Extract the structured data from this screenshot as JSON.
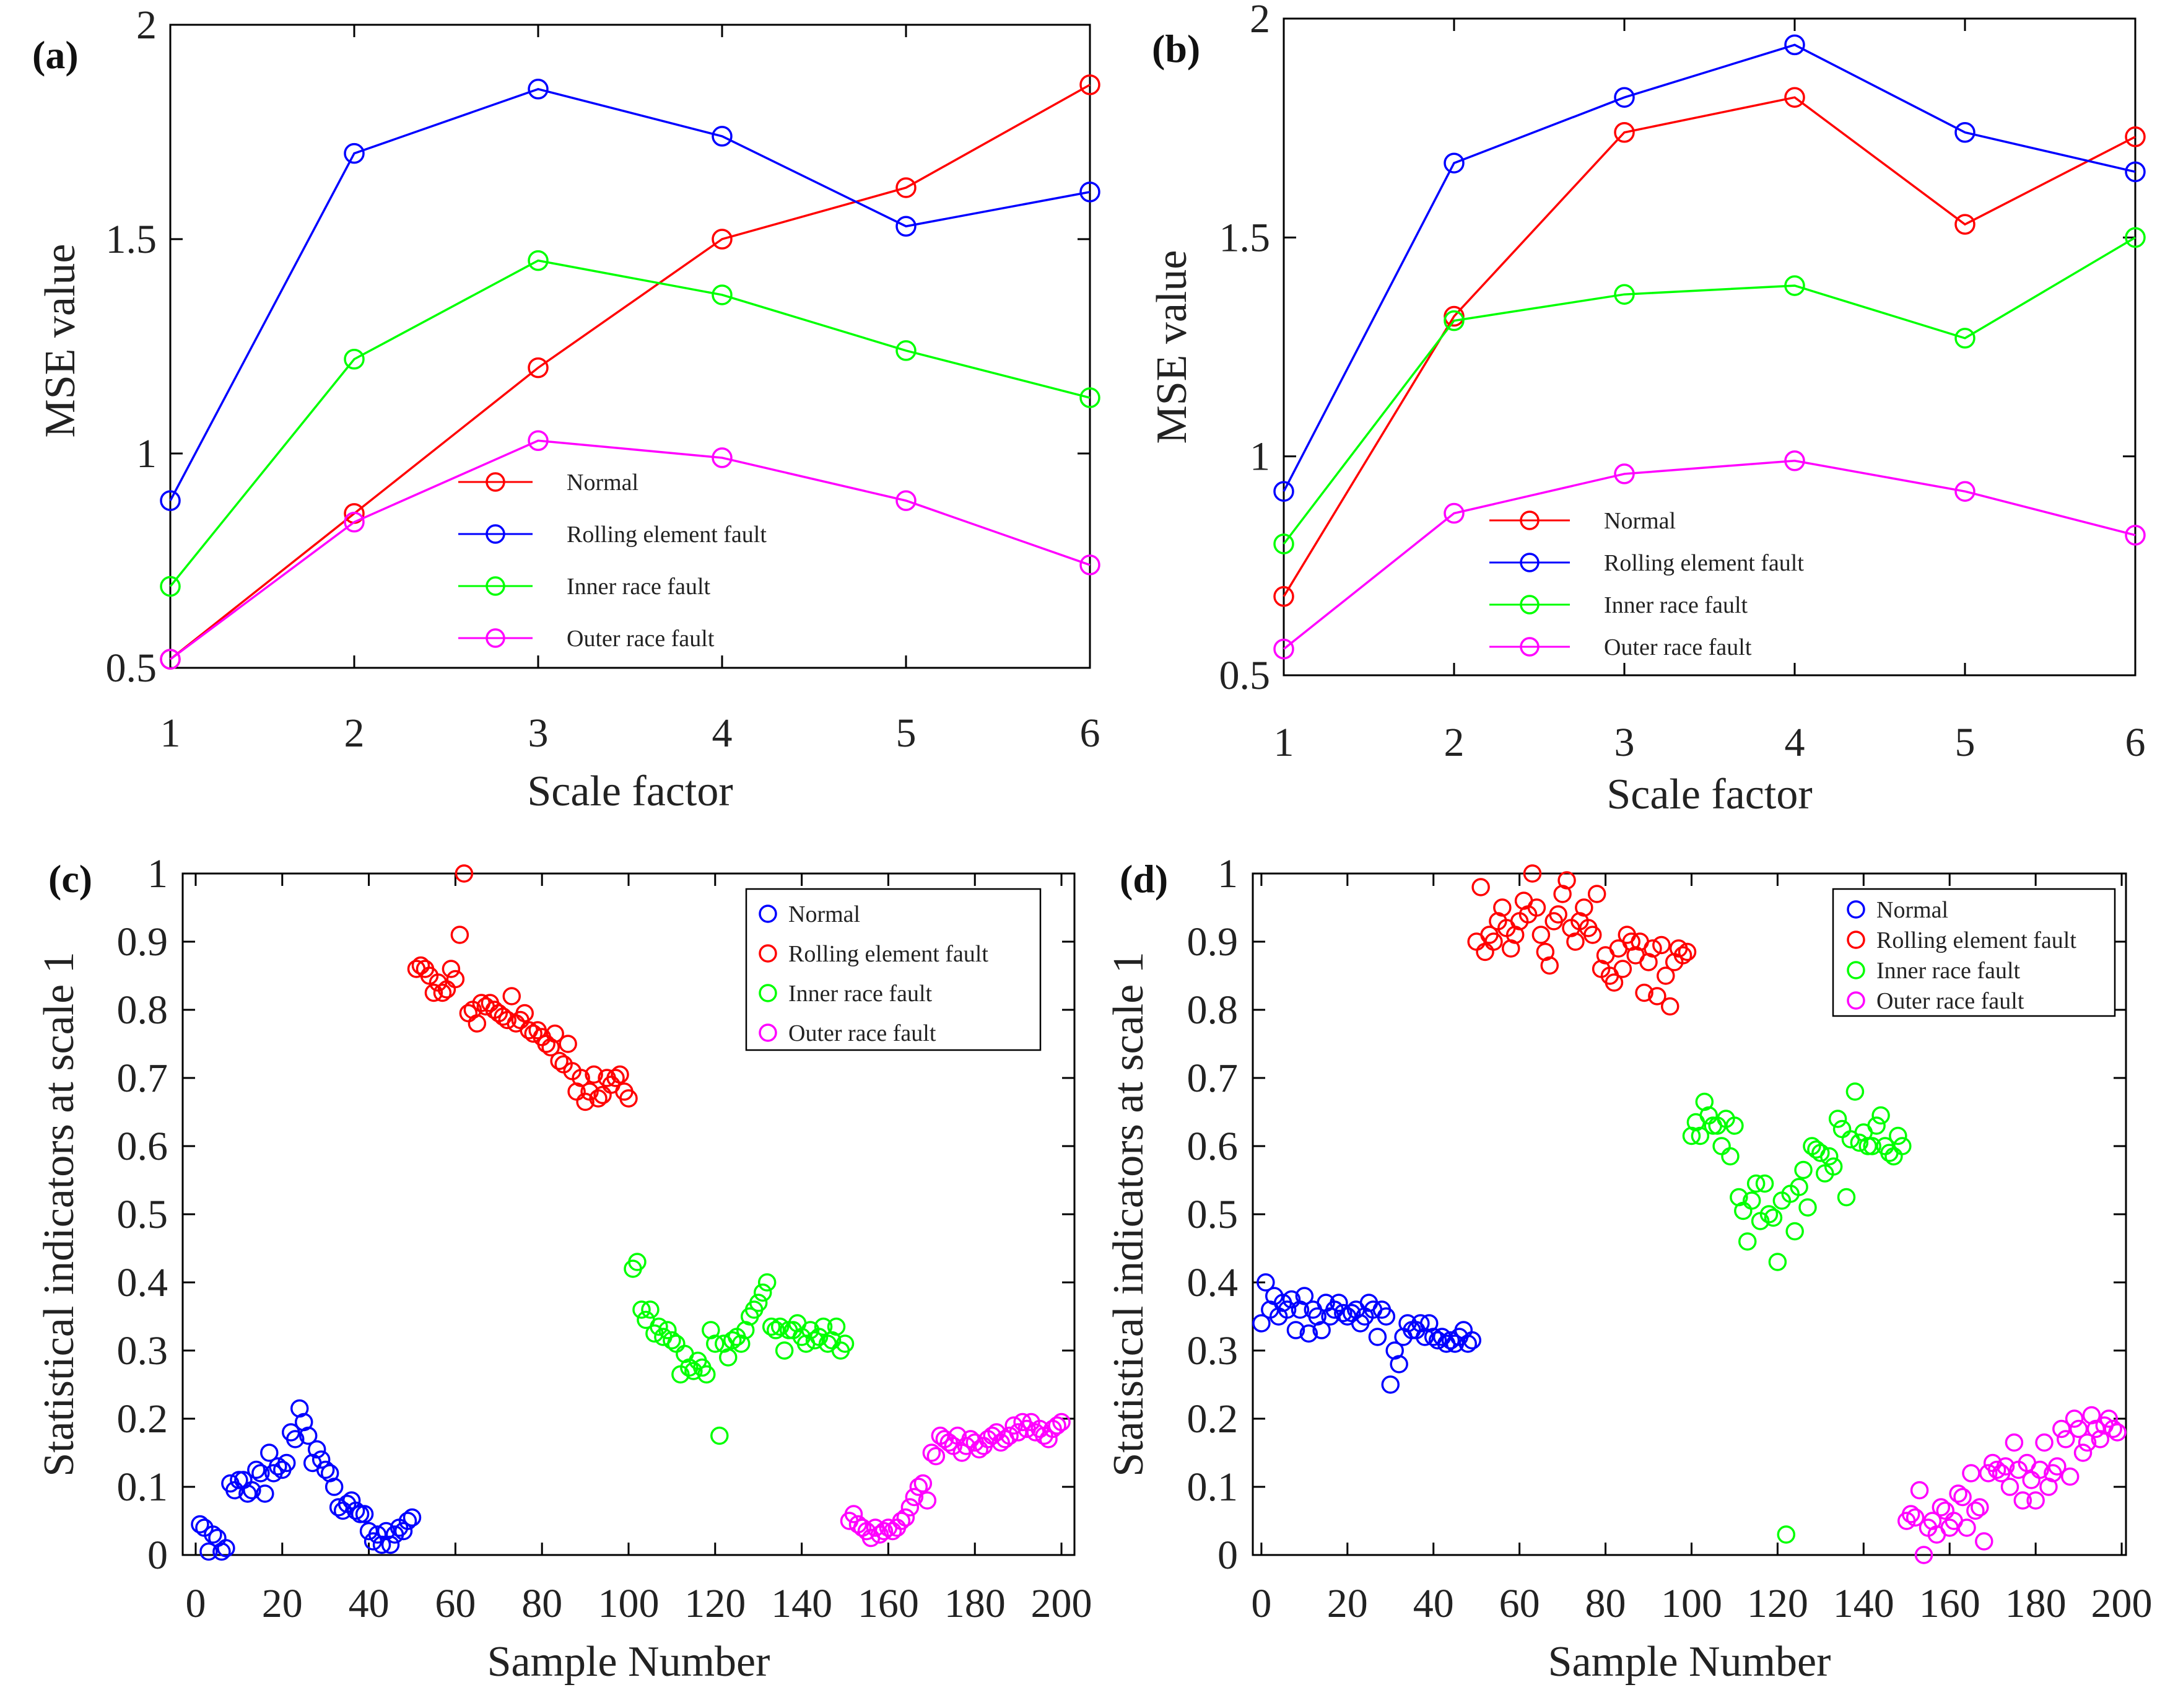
{
  "chart_data": [
    {
      "panel": "(a)",
      "type": "line",
      "xlabel": "Scale factor",
      "ylabel": "MSE value",
      "xlim": [
        1,
        6
      ],
      "ylim": [
        0.5,
        2
      ],
      "xticks": [
        "1",
        "2",
        "3",
        "4",
        "5",
        "6"
      ],
      "yticks": [
        "0.5",
        "1",
        "1.5",
        "2"
      ],
      "legend": "inside-bottom-center",
      "x": [
        1,
        2,
        3,
        4,
        5,
        6
      ],
      "series": [
        {
          "name": "Normal",
          "color": "#ff0000",
          "values": [
            0.52,
            0.86,
            1.2,
            1.5,
            1.62,
            1.86
          ]
        },
        {
          "name": "Rolling element fault",
          "color": "#0000ff",
          "values": [
            0.89,
            1.7,
            1.85,
            1.74,
            1.53,
            1.61
          ]
        },
        {
          "name": "Inner race fault",
          "color": "#00ff00",
          "values": [
            0.69,
            1.22,
            1.45,
            1.37,
            1.24,
            1.13
          ]
        },
        {
          "name": "Outer race fault",
          "color": "#ff00ff",
          "values": [
            0.52,
            0.84,
            1.03,
            0.99,
            0.89,
            0.74
          ]
        }
      ]
    },
    {
      "panel": "(b)",
      "type": "line",
      "xlabel": "Scale factor",
      "ylabel": "MSE value",
      "xlim": [
        1,
        6
      ],
      "ylim": [
        0.5,
        2
      ],
      "xticks": [
        "1",
        "2",
        "3",
        "4",
        "5",
        "6"
      ],
      "yticks": [
        "0.5",
        "1",
        "1.5",
        "2"
      ],
      "legend": "inside-bottom-center",
      "x": [
        1,
        2,
        3,
        4,
        5,
        6
      ],
      "series": [
        {
          "name": "Normal",
          "color": "#ff0000",
          "values": [
            0.68,
            1.32,
            1.74,
            1.82,
            1.53,
            1.73
          ]
        },
        {
          "name": "Rolling element fault",
          "color": "#0000ff",
          "values": [
            0.92,
            1.67,
            1.82,
            1.94,
            1.74,
            1.65
          ]
        },
        {
          "name": "Inner race fault",
          "color": "#00ff00",
          "values": [
            0.8,
            1.31,
            1.37,
            1.39,
            1.27,
            1.5
          ]
        },
        {
          "name": "Outer race fault",
          "color": "#ff00ff",
          "values": [
            0.56,
            0.87,
            0.96,
            0.99,
            0.92,
            0.82
          ]
        }
      ]
    },
    {
      "panel": "(c)",
      "type": "scatter",
      "xlabel": "Sample Number",
      "ylabel": "Statistical indicators at scale 1",
      "xlim": [
        -3,
        203
      ],
      "ylim": [
        0,
        1
      ],
      "xticks": [
        "0",
        "20",
        "40",
        "60",
        "80",
        "100",
        "120",
        "140",
        "160",
        "180",
        "200"
      ],
      "yticks": [
        "0",
        "0.1",
        "0.2",
        "0.3",
        "0.4",
        "0.5",
        "0.6",
        "0.7",
        "0.8",
        "0.9",
        "1"
      ],
      "legend": "top-right",
      "series": [
        {
          "name": "Normal",
          "color": "#0000ff",
          "x_start": 1,
          "values": [
            0.045,
            0.04,
            0.005,
            0.03,
            0.025,
            0.005,
            0.01,
            0.105,
            0.095,
            0.11,
            0.11,
            0.09,
            0.095,
            0.125,
            0.12,
            0.09,
            0.15,
            0.12,
            0.13,
            0.125,
            0.135,
            0.18,
            0.17,
            0.215,
            0.195,
            0.175,
            0.135,
            0.155,
            0.14,
            0.125,
            0.12,
            0.1,
            0.07,
            0.065,
            0.075,
            0.08,
            0.065,
            0.06,
            0.06,
            0.035,
            0.02,
            0.03,
            0.015,
            0.035,
            0.015,
            0.03,
            0.04,
            0.035,
            0.05,
            0.055
          ]
        },
        {
          "name": "Rolling element fault",
          "color": "#ff0000",
          "x_start": 51,
          "values": [
            0.86,
            0.865,
            0.86,
            0.85,
            0.825,
            0.84,
            0.825,
            0.83,
            0.86,
            0.845,
            0.91,
            1.0,
            0.795,
            0.8,
            0.78,
            0.81,
            0.805,
            0.81,
            0.8,
            0.795,
            0.79,
            0.785,
            0.82,
            0.78,
            0.785,
            0.795,
            0.77,
            0.765,
            0.77,
            0.76,
            0.75,
            0.745,
            0.765,
            0.725,
            0.72,
            0.75,
            0.71,
            0.68,
            0.7,
            0.665,
            0.68,
            0.705,
            0.67,
            0.675,
            0.7,
            0.69,
            0.7,
            0.705,
            0.68,
            0.67
          ]
        },
        {
          "name": "Inner race fault",
          "color": "#00ff00",
          "x_start": 101,
          "values": [
            0.42,
            0.43,
            0.36,
            0.345,
            0.36,
            0.325,
            0.335,
            0.32,
            0.33,
            0.315,
            0.31,
            0.265,
            0.295,
            0.275,
            0.27,
            0.285,
            0.275,
            0.265,
            0.33,
            0.31,
            0.175,
            0.31,
            0.29,
            0.315,
            0.32,
            0.31,
            0.33,
            0.35,
            0.36,
            0.37,
            0.385,
            0.4,
            0.335,
            0.33,
            0.335,
            0.3,
            0.33,
            0.33,
            0.34,
            0.32,
            0.31,
            0.33,
            0.315,
            0.32,
            0.335,
            0.31,
            0.315,
            0.335,
            0.3,
            0.31
          ]
        },
        {
          "name": "Outer race fault",
          "color": "#ff00ff",
          "x_start": 151,
          "values": [
            0.05,
            0.06,
            0.045,
            0.04,
            0.035,
            0.025,
            0.04,
            0.03,
            0.035,
            0.04,
            0.035,
            0.04,
            0.05,
            0.055,
            0.07,
            0.085,
            0.1,
            0.105,
            0.08,
            0.15,
            0.145,
            0.175,
            0.17,
            0.165,
            0.16,
            0.175,
            0.15,
            0.16,
            0.17,
            0.165,
            0.155,
            0.16,
            0.17,
            0.175,
            0.18,
            0.165,
            0.17,
            0.175,
            0.19,
            0.18,
            0.195,
            0.185,
            0.195,
            0.18,
            0.185,
            0.175,
            0.17,
            0.185,
            0.19,
            0.195
          ]
        }
      ]
    },
    {
      "panel": "(d)",
      "type": "scatter",
      "xlabel": "Sample Number",
      "ylabel": "Statistical indicators at scale 1",
      "xlim": [
        -2,
        201
      ],
      "ylim": [
        0,
        1
      ],
      "xticks": [
        "0",
        "20",
        "40",
        "60",
        "80",
        "100",
        "120",
        "140",
        "160",
        "180",
        "200"
      ],
      "yticks": [
        "0",
        "0.1",
        "0.2",
        "0.3",
        "0.4",
        "0.5",
        "0.6",
        "0.7",
        "0.8",
        "0.9",
        "1"
      ],
      "legend": "top-right",
      "series": [
        {
          "name": "Normal",
          "color": "#0000ff",
          "x_start": 0,
          "values": [
            0.34,
            0.4,
            0.36,
            0.38,
            0.35,
            0.37,
            0.36,
            0.375,
            0.33,
            0.36,
            0.38,
            0.325,
            0.36,
            0.35,
            0.33,
            0.37,
            0.35,
            0.36,
            0.37,
            0.355,
            0.35,
            0.355,
            0.36,
            0.34,
            0.35,
            0.37,
            0.36,
            0.32,
            0.36,
            0.35,
            0.25,
            0.3,
            0.28,
            0.32,
            0.34,
            0.33,
            0.33,
            0.34,
            0.32,
            0.34,
            0.32,
            0.315,
            0.32,
            0.31,
            0.315,
            0.31,
            0.32,
            0.33,
            0.31,
            0.315
          ]
        },
        {
          "name": "Rolling element fault",
          "color": "#ff0000",
          "x_start": 50,
          "values": [
            0.9,
            0.98,
            0.885,
            0.91,
            0.9,
            0.93,
            0.95,
            0.92,
            0.89,
            0.91,
            0.93,
            0.96,
            0.94,
            1.0,
            0.95,
            0.91,
            0.885,
            0.865,
            0.93,
            0.94,
            0.97,
            0.99,
            0.92,
            0.9,
            0.93,
            0.95,
            0.92,
            0.91,
            0.97,
            0.86,
            0.88,
            0.85,
            0.84,
            0.89,
            0.86,
            0.91,
            0.9,
            0.88,
            0.9,
            0.825,
            0.87,
            0.89,
            0.82,
            0.895,
            0.85,
            0.805,
            0.87,
            0.89,
            0.88,
            0.885
          ]
        },
        {
          "name": "Inner race fault",
          "color": "#00ff00",
          "x_start": 100,
          "values": [
            0.615,
            0.635,
            0.615,
            0.665,
            0.645,
            0.63,
            0.63,
            0.6,
            0.64,
            0.585,
            0.63,
            0.525,
            0.505,
            0.46,
            0.52,
            0.545,
            0.49,
            0.545,
            0.5,
            0.495,
            0.43,
            0.52,
            0.03,
            0.53,
            0.475,
            0.54,
            0.565,
            0.51,
            0.6,
            0.595,
            0.59,
            0.56,
            0.585,
            0.57,
            0.64,
            0.625,
            0.525,
            0.61,
            0.68,
            0.605,
            0.62,
            0.6,
            0.6,
            0.63,
            0.645,
            0.6,
            0.59,
            0.585,
            0.615,
            0.6
          ]
        },
        {
          "name": "Outer race fault",
          "color": "#ff00ff",
          "x_start": 150,
          "values": [
            0.05,
            0.06,
            0.055,
            0.095,
            0.0,
            0.04,
            0.05,
            0.03,
            0.07,
            0.065,
            0.04,
            0.05,
            0.09,
            0.085,
            0.04,
            0.12,
            0.065,
            0.07,
            0.02,
            0.12,
            0.135,
            0.125,
            0.12,
            0.13,
            0.1,
            0.165,
            0.125,
            0.08,
            0.135,
            0.11,
            0.08,
            0.125,
            0.165,
            0.1,
            0.12,
            0.13,
            0.185,
            0.17,
            0.115,
            0.2,
            0.185,
            0.15,
            0.165,
            0.205,
            0.185,
            0.17,
            0.19,
            0.2,
            0.185,
            0.18
          ]
        }
      ]
    }
  ]
}
